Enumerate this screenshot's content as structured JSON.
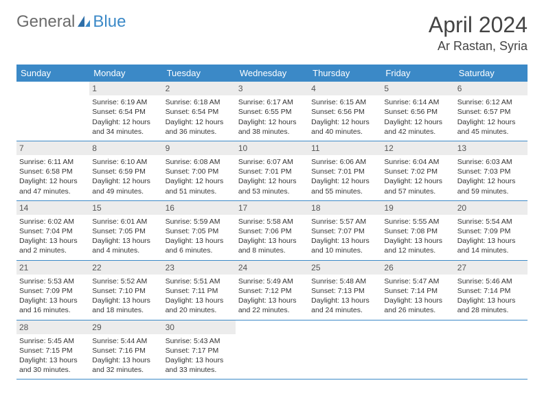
{
  "brand": {
    "part1": "General",
    "part2": "Blue",
    "gray": "#6b6b6b",
    "blue": "#3b89c7"
  },
  "title": "April 2024",
  "location": "Ar Rastan, Syria",
  "colors": {
    "header_bg": "#3b89c7",
    "header_fg": "#ffffff",
    "daynum_bg": "#ececec",
    "rule": "#3b89c7"
  },
  "weekdays": [
    "Sunday",
    "Monday",
    "Tuesday",
    "Wednesday",
    "Thursday",
    "Friday",
    "Saturday"
  ],
  "first_weekday_index": 1,
  "days": [
    {
      "n": 1,
      "sr": "6:19 AM",
      "ss": "6:54 PM",
      "dl": "12 hours and 34 minutes."
    },
    {
      "n": 2,
      "sr": "6:18 AM",
      "ss": "6:54 PM",
      "dl": "12 hours and 36 minutes."
    },
    {
      "n": 3,
      "sr": "6:17 AM",
      "ss": "6:55 PM",
      "dl": "12 hours and 38 minutes."
    },
    {
      "n": 4,
      "sr": "6:15 AM",
      "ss": "6:56 PM",
      "dl": "12 hours and 40 minutes."
    },
    {
      "n": 5,
      "sr": "6:14 AM",
      "ss": "6:56 PM",
      "dl": "12 hours and 42 minutes."
    },
    {
      "n": 6,
      "sr": "6:12 AM",
      "ss": "6:57 PM",
      "dl": "12 hours and 45 minutes."
    },
    {
      "n": 7,
      "sr": "6:11 AM",
      "ss": "6:58 PM",
      "dl": "12 hours and 47 minutes."
    },
    {
      "n": 8,
      "sr": "6:10 AM",
      "ss": "6:59 PM",
      "dl": "12 hours and 49 minutes."
    },
    {
      "n": 9,
      "sr": "6:08 AM",
      "ss": "7:00 PM",
      "dl": "12 hours and 51 minutes."
    },
    {
      "n": 10,
      "sr": "6:07 AM",
      "ss": "7:01 PM",
      "dl": "12 hours and 53 minutes."
    },
    {
      "n": 11,
      "sr": "6:06 AM",
      "ss": "7:01 PM",
      "dl": "12 hours and 55 minutes."
    },
    {
      "n": 12,
      "sr": "6:04 AM",
      "ss": "7:02 PM",
      "dl": "12 hours and 57 minutes."
    },
    {
      "n": 13,
      "sr": "6:03 AM",
      "ss": "7:03 PM",
      "dl": "12 hours and 59 minutes."
    },
    {
      "n": 14,
      "sr": "6:02 AM",
      "ss": "7:04 PM",
      "dl": "13 hours and 2 minutes."
    },
    {
      "n": 15,
      "sr": "6:01 AM",
      "ss": "7:05 PM",
      "dl": "13 hours and 4 minutes."
    },
    {
      "n": 16,
      "sr": "5:59 AM",
      "ss": "7:05 PM",
      "dl": "13 hours and 6 minutes."
    },
    {
      "n": 17,
      "sr": "5:58 AM",
      "ss": "7:06 PM",
      "dl": "13 hours and 8 minutes."
    },
    {
      "n": 18,
      "sr": "5:57 AM",
      "ss": "7:07 PM",
      "dl": "13 hours and 10 minutes."
    },
    {
      "n": 19,
      "sr": "5:55 AM",
      "ss": "7:08 PM",
      "dl": "13 hours and 12 minutes."
    },
    {
      "n": 20,
      "sr": "5:54 AM",
      "ss": "7:09 PM",
      "dl": "13 hours and 14 minutes."
    },
    {
      "n": 21,
      "sr": "5:53 AM",
      "ss": "7:09 PM",
      "dl": "13 hours and 16 minutes."
    },
    {
      "n": 22,
      "sr": "5:52 AM",
      "ss": "7:10 PM",
      "dl": "13 hours and 18 minutes."
    },
    {
      "n": 23,
      "sr": "5:51 AM",
      "ss": "7:11 PM",
      "dl": "13 hours and 20 minutes."
    },
    {
      "n": 24,
      "sr": "5:49 AM",
      "ss": "7:12 PM",
      "dl": "13 hours and 22 minutes."
    },
    {
      "n": 25,
      "sr": "5:48 AM",
      "ss": "7:13 PM",
      "dl": "13 hours and 24 minutes."
    },
    {
      "n": 26,
      "sr": "5:47 AM",
      "ss": "7:14 PM",
      "dl": "13 hours and 26 minutes."
    },
    {
      "n": 27,
      "sr": "5:46 AM",
      "ss": "7:14 PM",
      "dl": "13 hours and 28 minutes."
    },
    {
      "n": 28,
      "sr": "5:45 AM",
      "ss": "7:15 PM",
      "dl": "13 hours and 30 minutes."
    },
    {
      "n": 29,
      "sr": "5:44 AM",
      "ss": "7:16 PM",
      "dl": "13 hours and 32 minutes."
    },
    {
      "n": 30,
      "sr": "5:43 AM",
      "ss": "7:17 PM",
      "dl": "13 hours and 33 minutes."
    }
  ],
  "labels": {
    "sunrise": "Sunrise:",
    "sunset": "Sunset:",
    "daylight": "Daylight:"
  }
}
